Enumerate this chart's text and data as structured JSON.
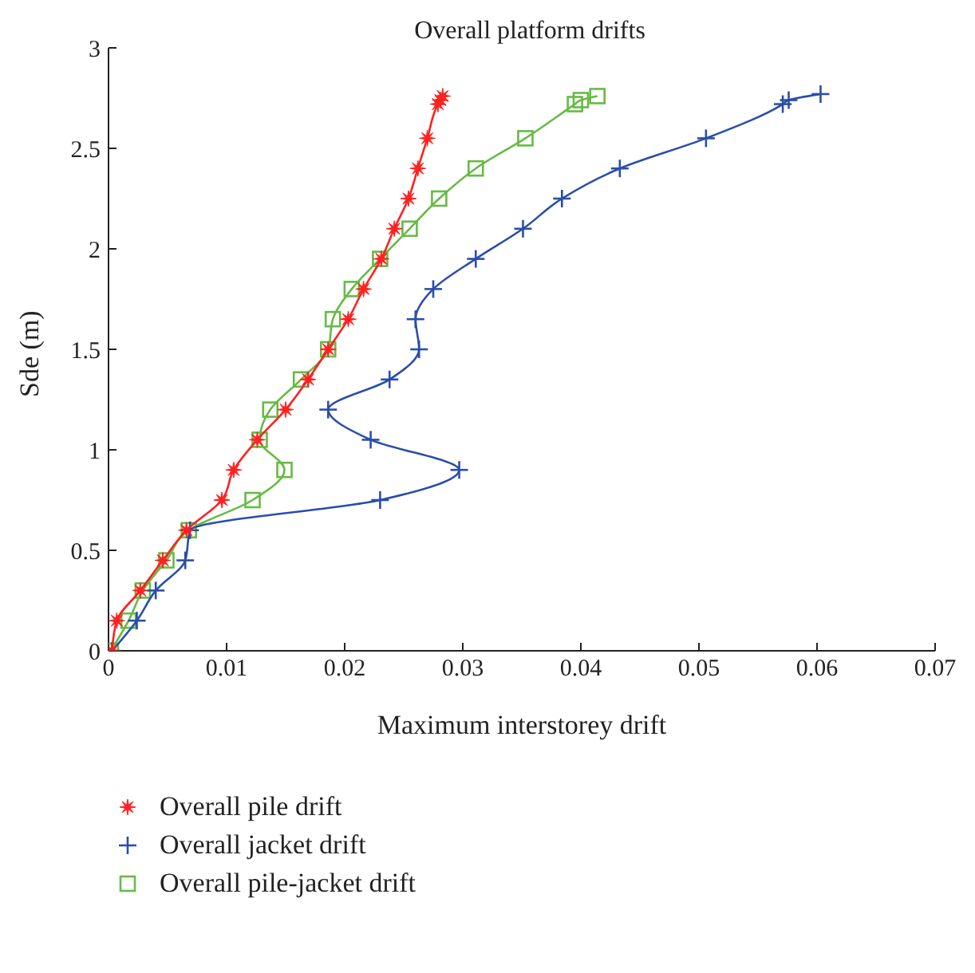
{
  "chart_data": {
    "type": "line",
    "title": "Overall platform drifts",
    "xlabel": "Maximum interstorey drift",
    "ylabel": "Sde (m)",
    "xlim": [
      0,
      0.07
    ],
    "xticks": [
      0,
      0.01,
      0.02,
      0.03,
      0.04,
      0.05,
      0.06,
      0.07
    ],
    "ylim": [
      0,
      3
    ],
    "yticks": [
      0,
      0.5,
      1,
      1.5,
      2,
      2.5,
      3
    ],
    "grid": false,
    "legend": "bottom left",
    "series": [
      {
        "name": "Overall pile drift",
        "color": "#ff2020",
        "marker": "star",
        "x": [
          0.0003,
          0.0007,
          0.0027,
          0.0046,
          0.0066,
          0.0096,
          0.0106,
          0.0126,
          0.015,
          0.0169,
          0.0186,
          0.0203,
          0.0216,
          0.0231,
          0.0242,
          0.0254,
          0.0262,
          0.027,
          0.0279,
          0.0281,
          0.0283
        ],
        "values": [
          0,
          0.15,
          0.3,
          0.45,
          0.6,
          0.75,
          0.9,
          1.05,
          1.2,
          1.35,
          1.5,
          1.65,
          1.8,
          1.95,
          2.1,
          2.25,
          2.4,
          2.55,
          2.72,
          2.74,
          2.76
        ]
      },
      {
        "name": "Overall jacket drift",
        "color": "#2a4ea8",
        "marker": "cross",
        "x": [
          0.0003,
          0.0024,
          0.004,
          0.0065,
          0.0069,
          0.023,
          0.0297,
          0.0222,
          0.0186,
          0.0238,
          0.0263,
          0.026,
          0.0275,
          0.0311,
          0.0351,
          0.0384,
          0.0433,
          0.0506,
          0.0571,
          0.0576,
          0.0603
        ],
        "values": [
          0,
          0.15,
          0.3,
          0.45,
          0.6,
          0.75,
          0.9,
          1.05,
          1.2,
          1.35,
          1.5,
          1.65,
          1.8,
          1.95,
          2.1,
          2.25,
          2.4,
          2.55,
          2.72,
          2.74,
          2.77
        ]
      },
      {
        "name": "Overall pile-jacket drift",
        "color": "#66bb44",
        "marker": "square",
        "x": [
          0.0002,
          0.0017,
          0.0029,
          0.0049,
          0.0068,
          0.0122,
          0.0149,
          0.0128,
          0.0137,
          0.0163,
          0.0186,
          0.019,
          0.0206,
          0.023,
          0.0255,
          0.028,
          0.0311,
          0.0353,
          0.0395,
          0.04,
          0.0414
        ],
        "values": [
          0,
          0.15,
          0.3,
          0.45,
          0.6,
          0.75,
          0.9,
          1.05,
          1.2,
          1.35,
          1.5,
          1.65,
          1.8,
          1.95,
          2.1,
          2.25,
          2.4,
          2.55,
          2.72,
          2.74,
          2.76
        ]
      }
    ]
  }
}
